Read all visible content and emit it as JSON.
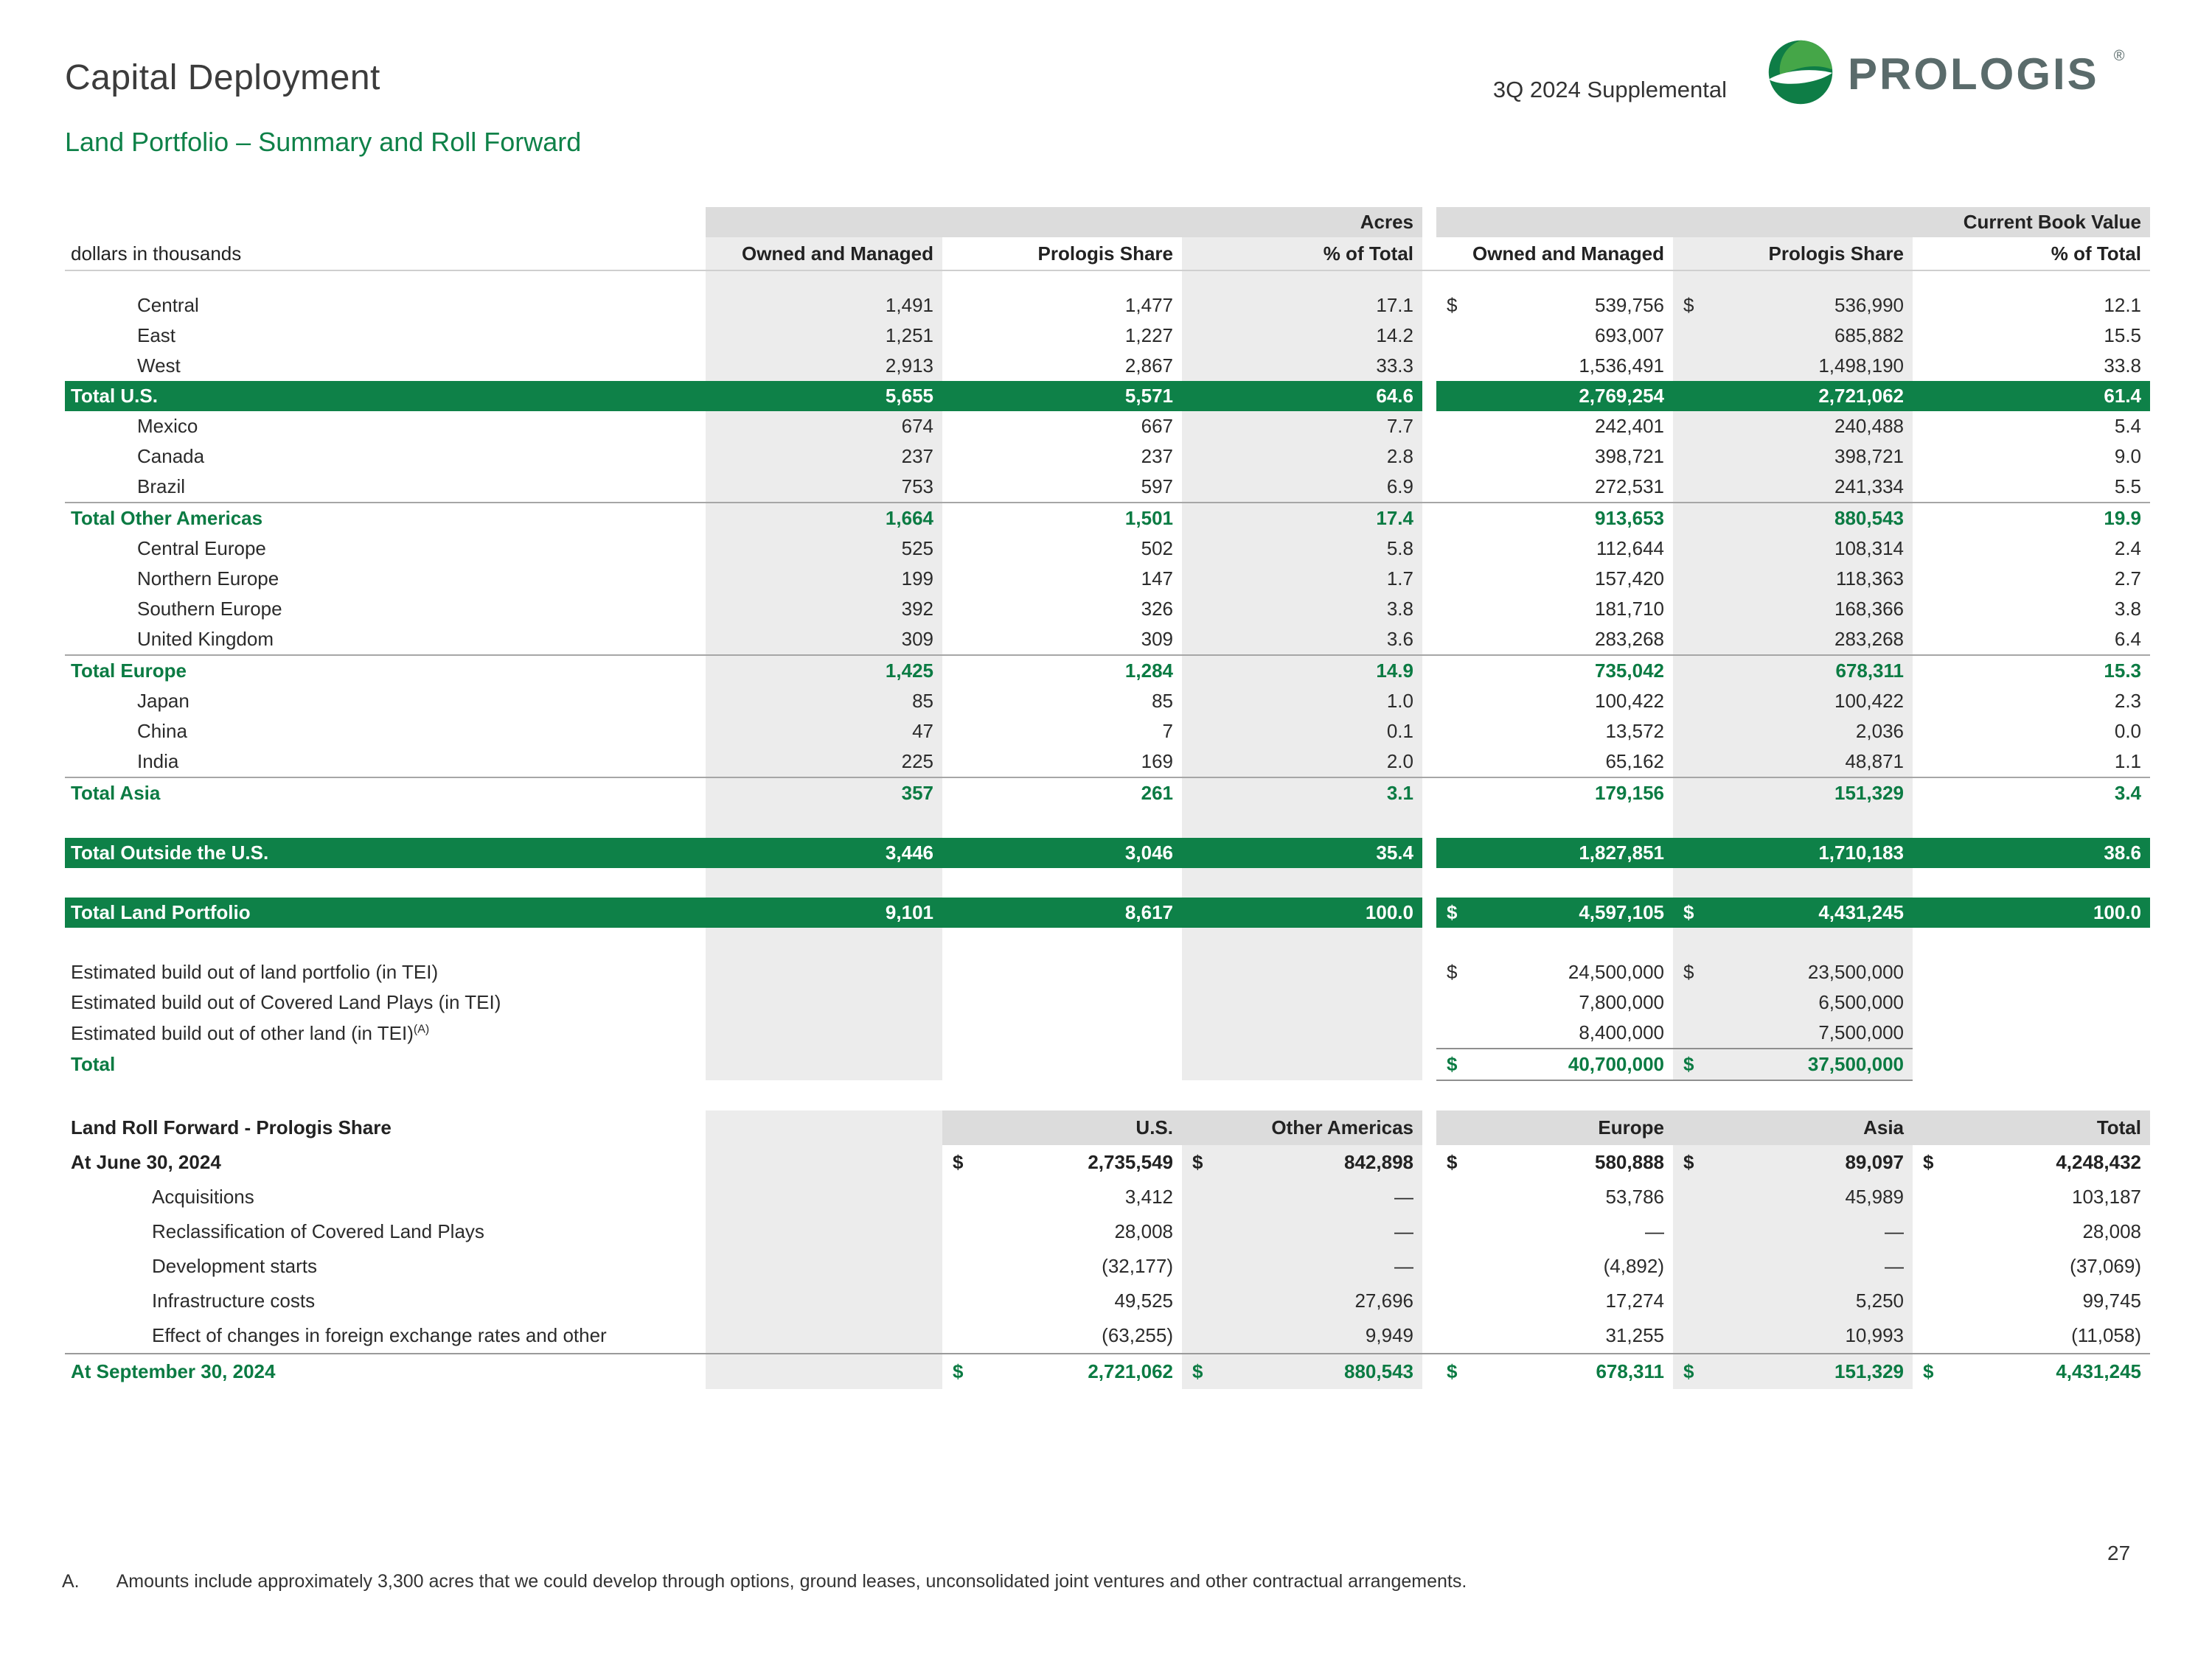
{
  "colors": {
    "accent_green": "#0E8148",
    "subtotal_green": "#0B7B43",
    "band_gray": "#DCDCDC",
    "stripe_gray": "#ECECEC",
    "wordmark_gray": "#5A6B6B"
  },
  "page": {
    "title": "Capital Deployment",
    "subtitle": "Land Portfolio – Summary and Roll Forward",
    "supplemental_label": "3Q 2024 Supplemental",
    "brand_wordmark": "PROLOGIS",
    "brand_reg_mark": "®",
    "page_number": "27",
    "footnote": {
      "letter": "A.",
      "text": "Amounts include approximately 3,300 acres that we could develop through options, ground leases, unconsolidated joint ventures and other contractual arrangements."
    }
  },
  "main_table": {
    "units_label": "dollars in thousands",
    "group_headers": [
      "Acres",
      "Current Book Value"
    ],
    "col_headers": [
      "Owned and Managed",
      "Prologis Share",
      "% of Total",
      "Owned and Managed",
      "Prologis Share",
      "% of Total"
    ],
    "rows": [
      {
        "style": "spacer"
      },
      {
        "style": "item",
        "label": "Central",
        "values": [
          "1,491",
          "1,477",
          "17.1",
          "539,756",
          "536,990",
          "12.1"
        ],
        "dollars": [
          3,
          4
        ]
      },
      {
        "style": "item",
        "label": "East",
        "values": [
          "1,251",
          "1,227",
          "14.2",
          "693,007",
          "685,882",
          "15.5"
        ]
      },
      {
        "style": "item",
        "label": "West",
        "values": [
          "2,913",
          "2,867",
          "33.3",
          "1,536,491",
          "1,498,190",
          "33.8"
        ]
      },
      {
        "style": "bar",
        "label": "Total U.S.",
        "values": [
          "5,655",
          "5,571",
          "64.6",
          "2,769,254",
          "2,721,062",
          "61.4"
        ]
      },
      {
        "style": "item",
        "label": "Mexico",
        "values": [
          "674",
          "667",
          "7.7",
          "242,401",
          "240,488",
          "5.4"
        ]
      },
      {
        "style": "item",
        "label": "Canada",
        "values": [
          "237",
          "237",
          "2.8",
          "398,721",
          "398,721",
          "9.0"
        ]
      },
      {
        "style": "item",
        "label": "Brazil",
        "values": [
          "753",
          "597",
          "6.9",
          "272,531",
          "241,334",
          "5.5"
        ]
      },
      {
        "style": "subtotal",
        "label": "Total Other Americas",
        "values": [
          "1,664",
          "1,501",
          "17.4",
          "913,653",
          "880,543",
          "19.9"
        ]
      },
      {
        "style": "item",
        "label": "Central Europe",
        "values": [
          "525",
          "502",
          "5.8",
          "112,644",
          "108,314",
          "2.4"
        ]
      },
      {
        "style": "item",
        "label": "Northern Europe",
        "values": [
          "199",
          "147",
          "1.7",
          "157,420",
          "118,363",
          "2.7"
        ]
      },
      {
        "style": "item",
        "label": "Southern Europe",
        "values": [
          "392",
          "326",
          "3.8",
          "181,710",
          "168,366",
          "3.8"
        ]
      },
      {
        "style": "item",
        "label": "United Kingdom",
        "values": [
          "309",
          "309",
          "3.6",
          "283,268",
          "283,268",
          "6.4"
        ]
      },
      {
        "style": "subtotal",
        "label": "Total Europe",
        "values": [
          "1,425",
          "1,284",
          "14.9",
          "735,042",
          "678,311",
          "15.3"
        ]
      },
      {
        "style": "item",
        "label": "Japan",
        "values": [
          "85",
          "85",
          "1.0",
          "100,422",
          "100,422",
          "2.3"
        ]
      },
      {
        "style": "item",
        "label": "China",
        "values": [
          "47",
          "7",
          "0.1",
          "13,572",
          "2,036",
          "0.0"
        ]
      },
      {
        "style": "item",
        "label": "India",
        "values": [
          "225",
          "169",
          "2.0",
          "65,162",
          "48,871",
          "1.1"
        ]
      },
      {
        "style": "subtotal",
        "label": "Total Asia",
        "values": [
          "357",
          "261",
          "3.1",
          "179,156",
          "151,329",
          "3.4"
        ]
      },
      {
        "style": "blank"
      },
      {
        "style": "bar",
        "label": "Total Outside the U.S.",
        "values": [
          "3,446",
          "3,046",
          "35.4",
          "1,827,851",
          "1,710,183",
          "38.6"
        ]
      },
      {
        "style": "blank"
      },
      {
        "style": "bar",
        "label": "Total Land Portfolio",
        "values": [
          "9,101",
          "8,617",
          "100.0",
          "4,597,105",
          "4,431,245",
          "100.0"
        ],
        "dollars": [
          3,
          4
        ]
      },
      {
        "style": "blank"
      },
      {
        "style": "bo",
        "label": "Estimated build out of land portfolio (in TEI)",
        "values": [
          "",
          "",
          "",
          "24,500,000",
          "23,500,000",
          ""
        ],
        "dollars": [
          3,
          4
        ]
      },
      {
        "style": "bo",
        "label": "Estimated build out of Covered Land Plays (in TEI)",
        "values": [
          "",
          "",
          "",
          "7,800,000",
          "6,500,000",
          ""
        ]
      },
      {
        "style": "bo",
        "end": true,
        "label": "Estimated build out of other land (in TEI)",
        "sup": "(A)",
        "values": [
          "",
          "",
          "",
          "8,400,000",
          "7,500,000",
          ""
        ]
      },
      {
        "style": "bo-total",
        "label": "Total",
        "values": [
          "",
          "",
          "",
          "40,700,000",
          "37,500,000",
          ""
        ],
        "dollars": [
          3,
          4
        ]
      }
    ]
  },
  "roll_forward": {
    "title": "Land Roll Forward - Prologis Share",
    "col_headers": [
      "U.S.",
      "Other Americas",
      "Europe",
      "Asia",
      "Total"
    ],
    "rows": [
      {
        "style": "open",
        "label": "At June 30, 2024",
        "values": [
          "2,735,549",
          "842,898",
          "580,888",
          "89,097",
          "4,248,432"
        ],
        "dollars": [
          0,
          1,
          2,
          3,
          4
        ]
      },
      {
        "style": "item",
        "label": "Acquisitions",
        "values": [
          "3,412",
          "—",
          "53,786",
          "45,989",
          "103,187"
        ]
      },
      {
        "style": "item",
        "label": "Reclassification of Covered Land Plays",
        "values": [
          "28,008",
          "—",
          "—",
          "—",
          "28,008"
        ]
      },
      {
        "style": "item",
        "label": "Development starts",
        "values": [
          "(32,177)",
          "—",
          "(4,892)",
          "—",
          "(37,069)"
        ]
      },
      {
        "style": "item",
        "label": "Infrastructure costs",
        "values": [
          "49,525",
          "27,696",
          "17,274",
          "5,250",
          "99,745"
        ]
      },
      {
        "style": "item",
        "label": "Effect of changes in foreign exchange rates and other",
        "values": [
          "(63,255)",
          "9,949",
          "31,255",
          "10,993",
          "(11,058)"
        ]
      },
      {
        "style": "close",
        "label": "At September 30, 2024",
        "values": [
          "2,721,062",
          "880,543",
          "678,311",
          "151,329",
          "4,431,245"
        ],
        "dollars": [
          0,
          1,
          2,
          3,
          4
        ]
      }
    ]
  }
}
